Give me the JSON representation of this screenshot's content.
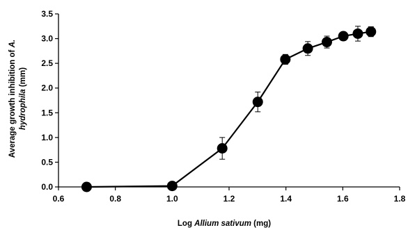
{
  "chart_data": {
    "type": "line",
    "xlabel": {
      "prefix": "Log ",
      "italic": "Allium sativum",
      "suffix": " (mg)"
    },
    "ylabel": {
      "line1": {
        "text": "Average growth inhibition of ",
        "italic": "A."
      },
      "line2": {
        "italic": "hydrophila",
        "text": " (mm)"
      }
    },
    "xlim": [
      0.6,
      1.8
    ],
    "ylim": [
      0.0,
      3.5
    ],
    "x_ticks": [
      "0.6",
      "0.8",
      "1.0",
      "1.2",
      "1.4",
      "1.6",
      "1.8"
    ],
    "y_ticks": [
      "0.0",
      "0.5",
      "1.0",
      "1.5",
      "2.0",
      "2.5",
      "3.0",
      "3.5"
    ],
    "grid": false,
    "marker": "circle",
    "line_color": "#000000",
    "marker_color": "#000000",
    "series": [
      {
        "x": [
          0.699,
          1.0,
          1.176,
          1.301,
          1.398,
          1.477,
          1.544,
          1.602,
          1.653,
          1.699
        ],
        "y": [
          0.0,
          0.02,
          0.78,
          1.72,
          2.58,
          2.8,
          2.93,
          3.05,
          3.1,
          3.14
        ],
        "err": [
          0.0,
          0.0,
          0.22,
          0.2,
          0.1,
          0.14,
          0.12,
          0.08,
          0.15,
          0.1
        ]
      }
    ]
  }
}
